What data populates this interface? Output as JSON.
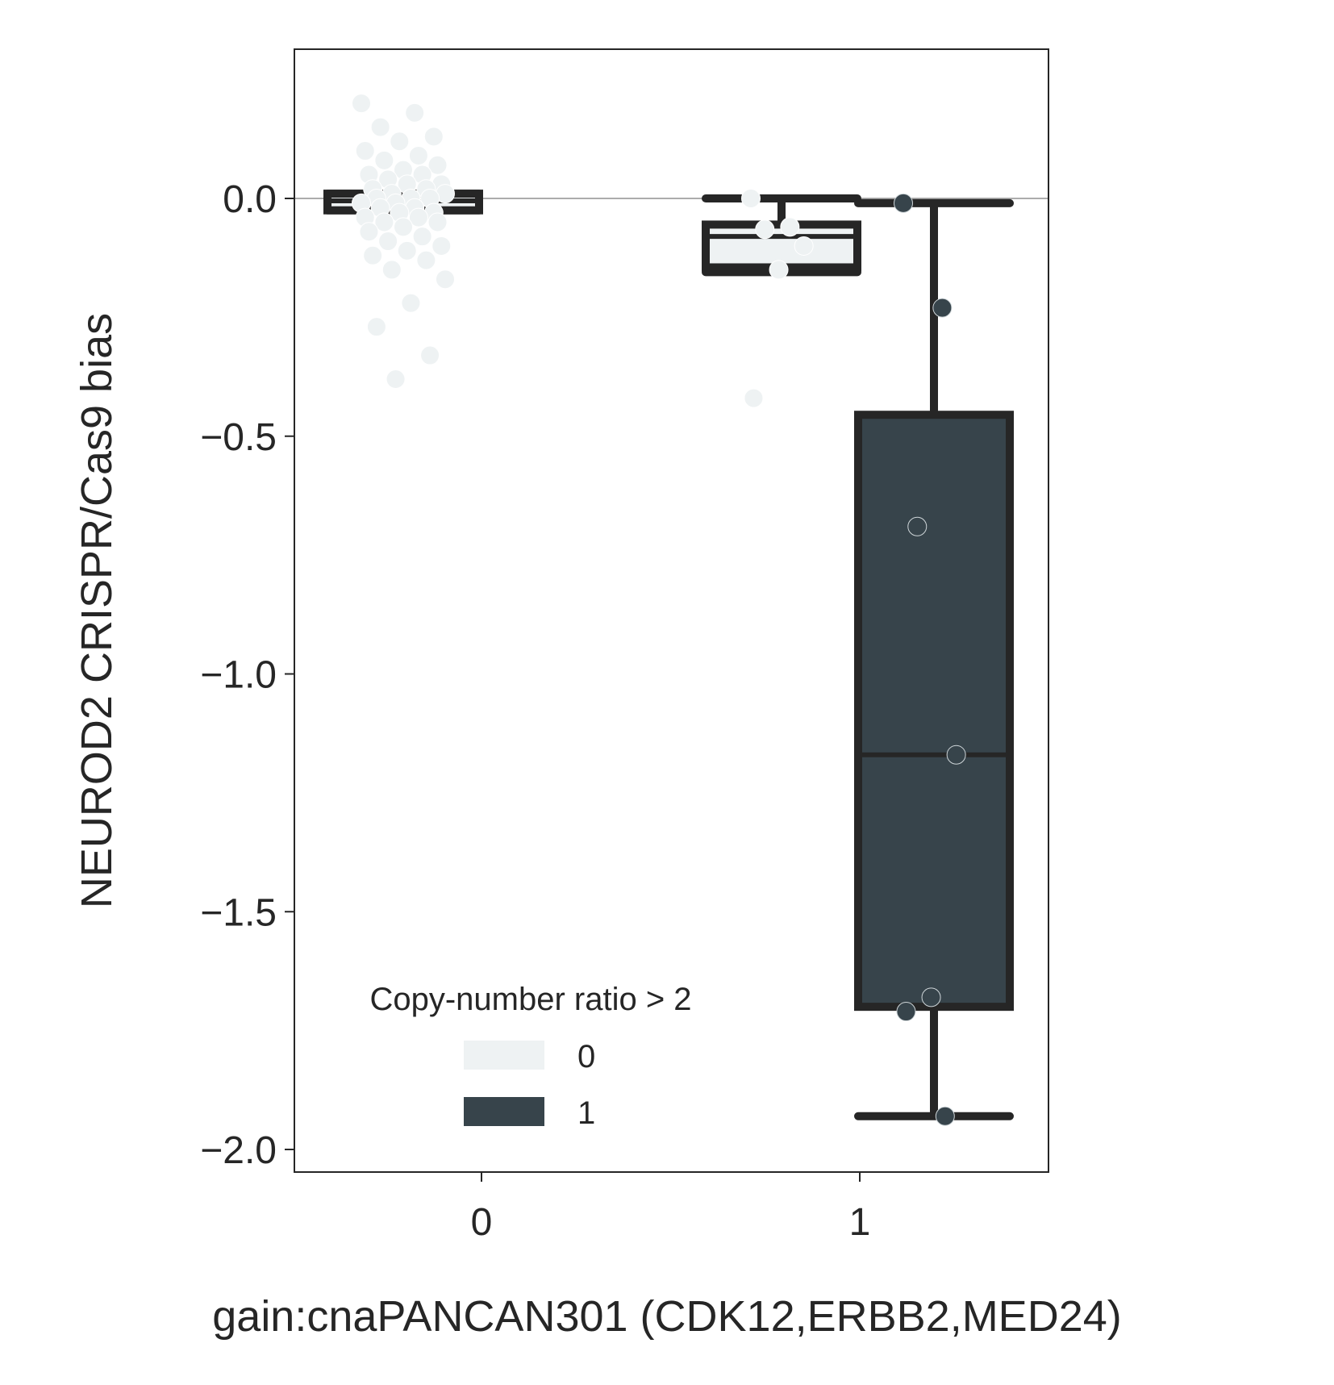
{
  "chart_data": {
    "type": "box",
    "xlabel": "gain:cnaPANCAN301 (CDK12,ERBB2,MED24)",
    "ylabel": "NEUROD2 CRISPR/Cas9 bias",
    "categories": [
      "0",
      "1"
    ],
    "ylim": [
      -2.05,
      0.31
    ],
    "yticks": [
      0.0,
      -0.5,
      -1.0,
      -1.5,
      -2.0
    ],
    "ytick_labels": [
      "0.0",
      "−0.5",
      "−1.0",
      "−1.5",
      "−2.0"
    ],
    "reference_line_y": 0.0,
    "legend": {
      "title": "Copy-number ratio > 2",
      "placement": "lower-left",
      "entries": [
        {
          "label": "0",
          "color": "#eef2f3"
        },
        {
          "label": "1",
          "color": "#37444b"
        }
      ]
    },
    "colors": {
      "hue0": "#eef2f3",
      "hue1": "#37444b",
      "outline": "#262626"
    },
    "boxes": [
      {
        "category": "0",
        "hue": "0",
        "q1": -0.025,
        "median": -0.005,
        "q3": 0.01,
        "whisker_low": -0.025,
        "whisker_high": 0.01
      },
      {
        "category": "1",
        "hue": "0",
        "q1": -0.145,
        "median": -0.08,
        "q3": -0.055,
        "whisker_low": -0.155,
        "whisker_high": 0.0
      },
      {
        "category": "1",
        "hue": "1",
        "q1": -1.7,
        "median": -1.17,
        "q3": -0.455,
        "whisker_low": -1.93,
        "whisker_high": -0.01
      }
    ],
    "points": [
      {
        "category": "0",
        "hue": "0",
        "values": [
          0.2,
          0.18,
          0.15,
          0.13,
          0.12,
          0.1,
          0.09,
          0.08,
          0.07,
          0.06,
          0.05,
          0.05,
          0.04,
          0.03,
          0.03,
          0.02,
          0.02,
          0.01,
          0.01,
          0.0,
          0.0,
          0.0,
          -0.01,
          -0.01,
          -0.02,
          -0.02,
          -0.03,
          -0.03,
          -0.04,
          -0.04,
          -0.05,
          -0.05,
          -0.06,
          -0.07,
          -0.08,
          -0.09,
          -0.1,
          -0.11,
          -0.12,
          -0.13,
          -0.15,
          -0.17,
          -0.22,
          -0.27,
          -0.33,
          -0.38
        ]
      },
      {
        "category": "1",
        "hue": "0",
        "values": [
          0.0,
          -0.06,
          -0.065,
          -0.1,
          -0.15,
          -0.42
        ]
      },
      {
        "category": "1",
        "hue": "1",
        "values": [
          -0.01,
          -0.23,
          -0.69,
          -1.17,
          -1.68,
          -1.71,
          -1.93
        ]
      }
    ]
  }
}
